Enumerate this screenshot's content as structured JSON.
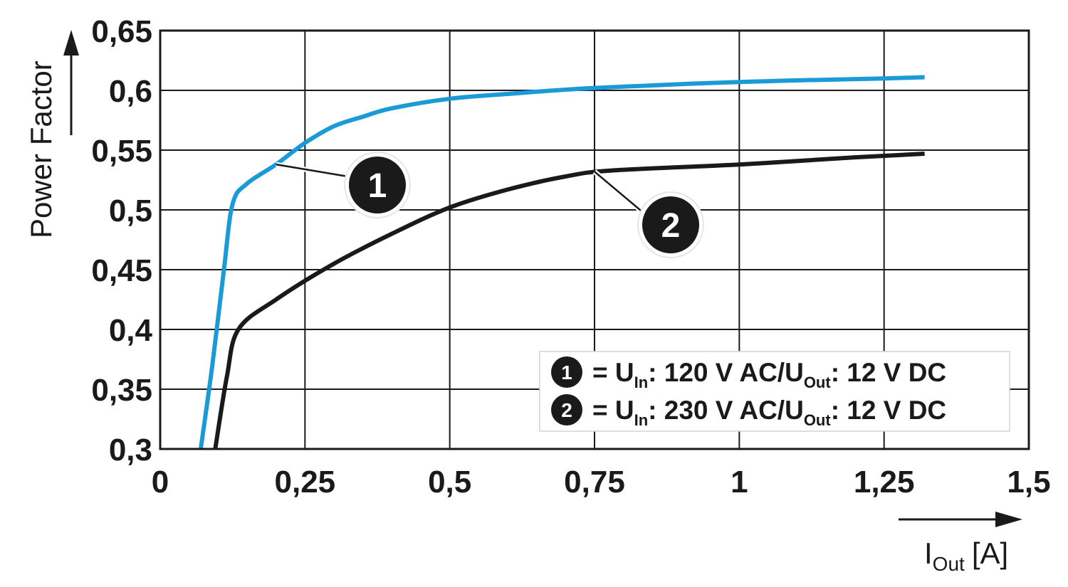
{
  "chart_data": {
    "type": "line",
    "ylabel": "Power Factor",
    "xlabel": {
      "main": "I",
      "sub": "Out",
      "unit": "[A]"
    },
    "xlim": [
      0,
      1.5
    ],
    "ylim": [
      0.3,
      0.65
    ],
    "x_ticks": [
      0,
      0.25,
      0.5,
      0.75,
      1,
      1.25,
      1.5
    ],
    "x_tick_labels": [
      "0",
      "0,25",
      "0,5",
      "0,75",
      "1",
      "1,25",
      "1,5"
    ],
    "y_ticks": [
      0.3,
      0.35,
      0.4,
      0.45,
      0.5,
      0.55,
      0.6,
      0.65
    ],
    "y_tick_labels": [
      "0,3",
      "0,35",
      "0,4",
      "0,45",
      "0,5",
      "0,55",
      "0,6",
      "0,65"
    ],
    "grid": true,
    "legend_position": "bottom-right",
    "series": [
      {
        "badge": "1",
        "color": "#1a9ad6",
        "points": [
          [
            0.07,
            0.3
          ],
          [
            0.09,
            0.37
          ],
          [
            0.11,
            0.45
          ],
          [
            0.125,
            0.505
          ],
          [
            0.15,
            0.522
          ],
          [
            0.2,
            0.538
          ],
          [
            0.25,
            0.556
          ],
          [
            0.3,
            0.57
          ],
          [
            0.35,
            0.578
          ],
          [
            0.4,
            0.585
          ],
          [
            0.5,
            0.593
          ],
          [
            0.6,
            0.597
          ],
          [
            0.75,
            0.602
          ],
          [
            1.0,
            0.607
          ],
          [
            1.25,
            0.61
          ],
          [
            1.32,
            0.611
          ]
        ],
        "callout_at": [
          0.2,
          0.538
        ],
        "legend": {
          "eq": "= U",
          "sub_in": "In",
          "text1": ": 120 V AC/U",
          "sub_out": "Out",
          "text2": ": 12 V DC"
        }
      },
      {
        "badge": "2",
        "color": "#1a1a1a",
        "points": [
          [
            0.095,
            0.3
          ],
          [
            0.115,
            0.36
          ],
          [
            0.135,
            0.4
          ],
          [
            0.2,
            0.425
          ],
          [
            0.3,
            0.455
          ],
          [
            0.4,
            0.48
          ],
          [
            0.5,
            0.502
          ],
          [
            0.6,
            0.517
          ],
          [
            0.7,
            0.528
          ],
          [
            0.78,
            0.533
          ],
          [
            1.0,
            0.538
          ],
          [
            1.2,
            0.544
          ],
          [
            1.32,
            0.547
          ]
        ],
        "callout_at": [
          0.75,
          0.532
        ],
        "legend": {
          "eq": "= U",
          "sub_in": "In",
          "text1": ": 230 V AC/U",
          "sub_out": "Out",
          "text2": ": 12 V DC"
        }
      }
    ]
  }
}
